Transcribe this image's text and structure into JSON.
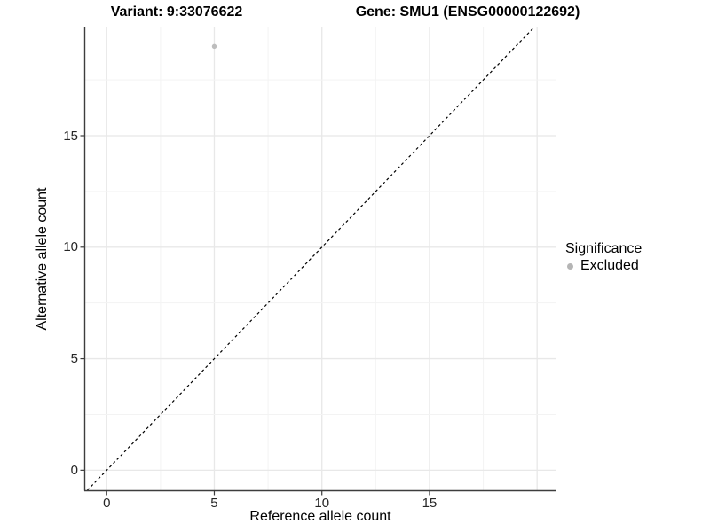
{
  "titles": {
    "variant": "Variant: 9:33076622",
    "gene": "Gene: SMU1 (ENSG00000122692)"
  },
  "axes": {
    "x": {
      "label": "Reference allele count"
    },
    "y": {
      "label": "Alternative allele count"
    }
  },
  "legend": {
    "title": "Significance",
    "items": [
      {
        "label": "Excluded",
        "color": "#b5b5b5"
      }
    ]
  },
  "colors": {
    "axis_line": "#3d3d3d",
    "tick_mark": "#3d3d3d",
    "grid_major": "#e8e8e8",
    "grid_minor": "#f3f3f3",
    "reference_line": "#000000",
    "point": "#bdbdbd",
    "background": "#ffffff"
  },
  "chart_data": {
    "type": "scatter",
    "title_left": "Variant: 9:33076622",
    "title_right": "Gene: SMU1 (ENSG00000122692)",
    "xlabel": "Reference allele count",
    "ylabel": "Alternative allele count",
    "xlim": [
      -1.0,
      20.9
    ],
    "ylim": [
      -0.9,
      19.85
    ],
    "x_ticks": [
      0,
      5,
      10,
      15
    ],
    "y_ticks": [
      0,
      5,
      10,
      15
    ],
    "grid": {
      "minor_step": 2.5,
      "major_step": 5,
      "x_max": 20,
      "y_max": 17.5,
      "grid_on": true
    },
    "reference_line": {
      "slope": 1,
      "intercept": 0,
      "style": "dashed"
    },
    "series": [
      {
        "name": "Excluded",
        "color": "#bdbdbd",
        "points": [
          {
            "x": 5,
            "y": 19
          }
        ]
      }
    ],
    "legend_position": "right",
    "legend_title": "Significance"
  }
}
